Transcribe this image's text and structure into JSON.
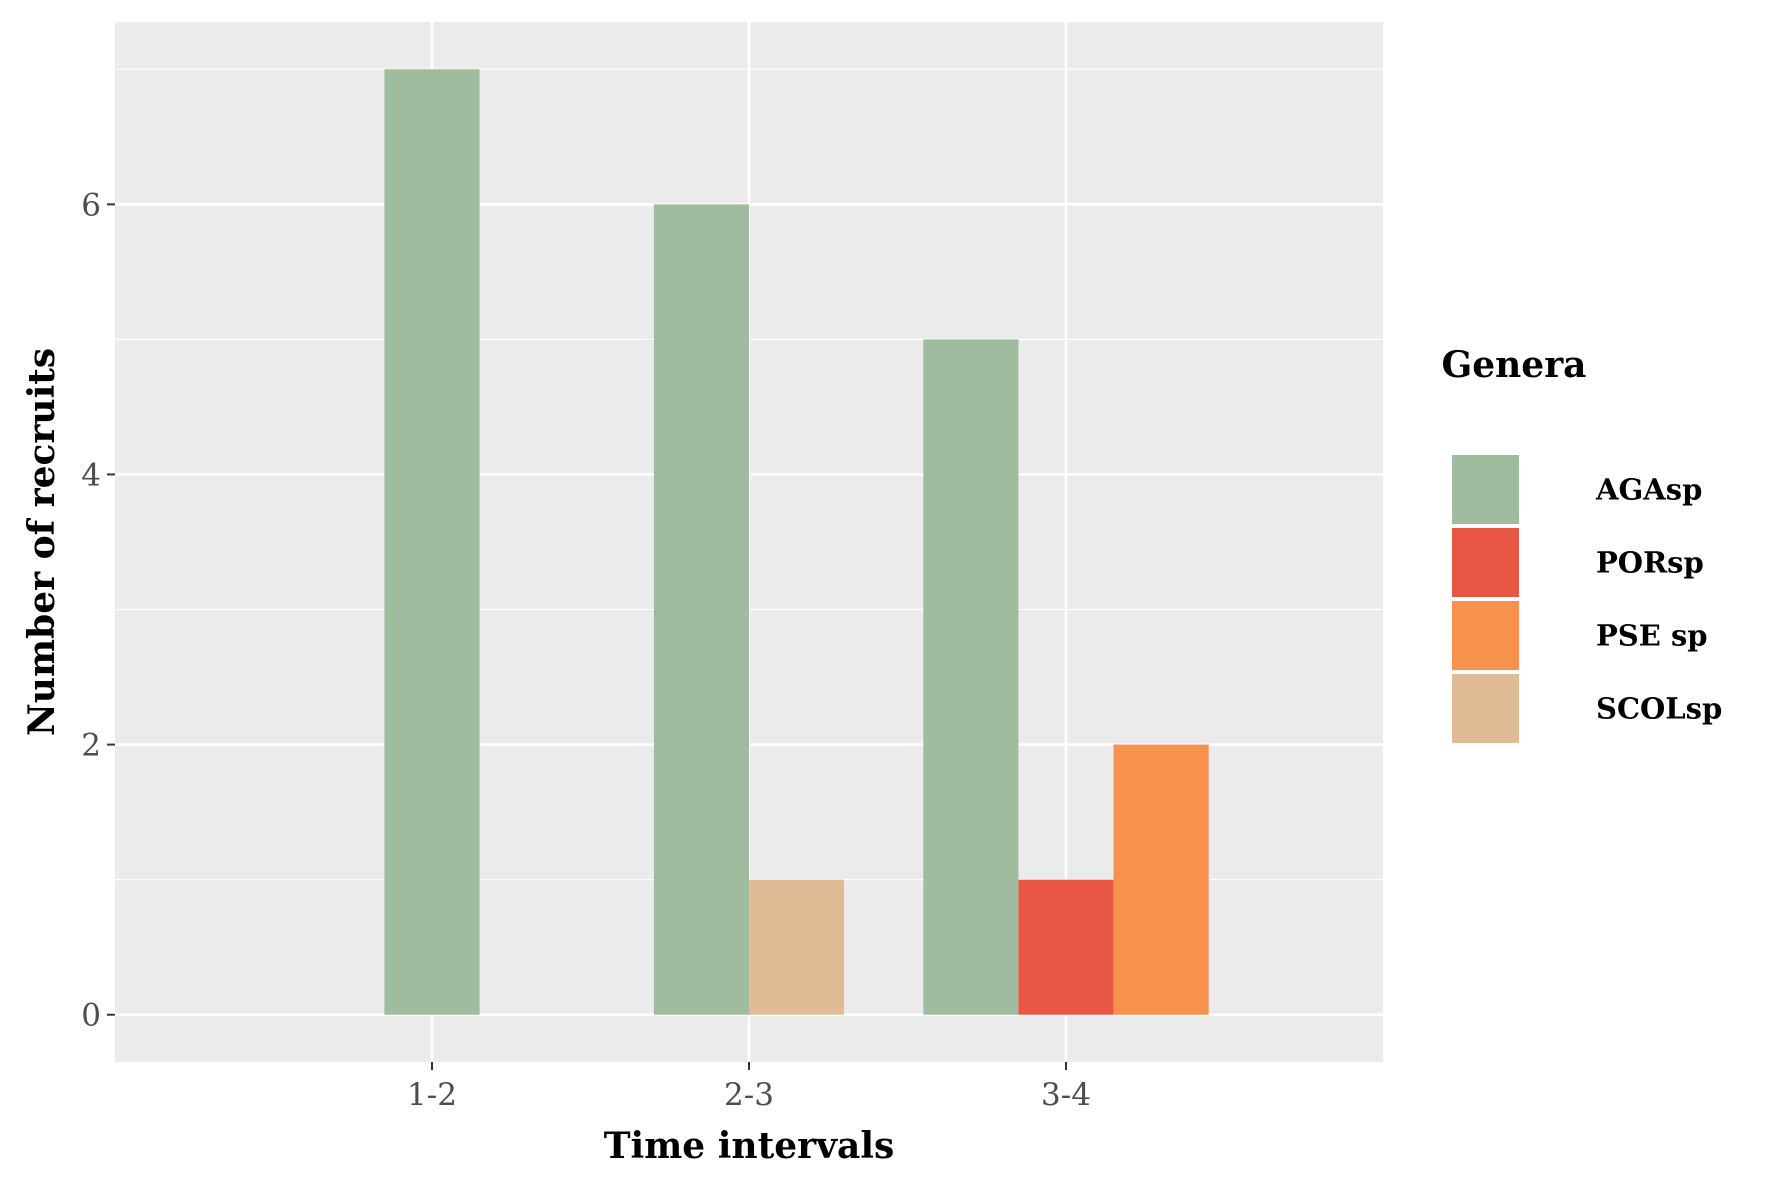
{
  "chart_data": {
    "type": "bar",
    "title": "",
    "xlabel": "Time intervals",
    "ylabel": "Number of recruits",
    "categories": [
      "1-2",
      "2-3",
      "3-4"
    ],
    "y_ticks": [
      "0",
      "2",
      "4",
      "6"
    ],
    "ylim": [
      -0.35,
      7.35
    ],
    "legend_title": "Genera",
    "legend_position": "right",
    "grid": true,
    "series": [
      {
        "name": "AGAsp",
        "color": "#9fbc9e",
        "values": [
          7,
          6,
          5
        ]
      },
      {
        "name": "PORsp",
        "color": "#e85744",
        "values": [
          null,
          null,
          1
        ]
      },
      {
        "name": "PSE sp",
        "color": "#f6914e",
        "values": [
          null,
          null,
          2
        ]
      },
      {
        "name": "SCOLsp",
        "color": "#dfbc95",
        "values": [
          null,
          1,
          null
        ]
      }
    ]
  }
}
